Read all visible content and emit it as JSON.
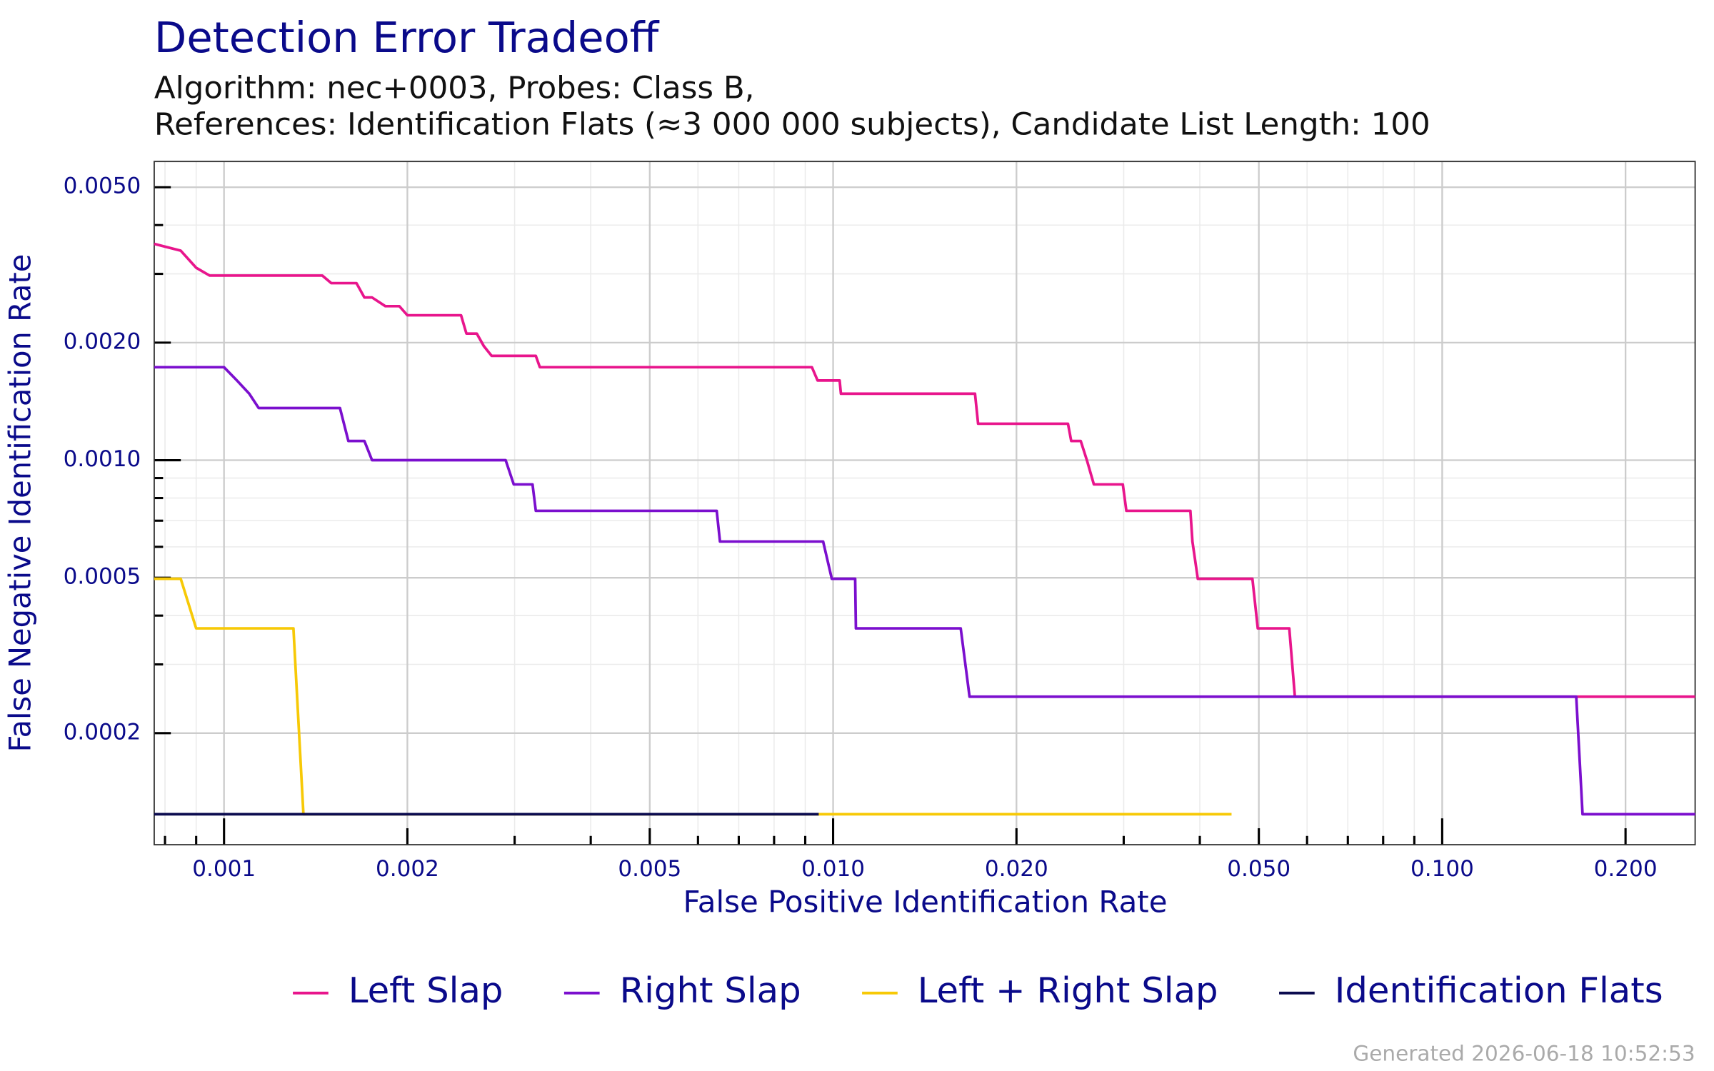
{
  "chart_data": {
    "type": "line",
    "title": "Detection Error Tradeoff",
    "subtitle": [
      "Algorithm: nec+0003, Probes: Class B,",
      "References: Identification Flats (≈3 000 000 subjects), Candidate List Length: 100"
    ],
    "x_label": "False Positive Identification Rate",
    "y_label": "False Negative Identification Rate",
    "xscale": "log",
    "yscale": "log",
    "grid": true,
    "legend": "bottom",
    "xlim": [
      0.000768,
      0.2602
    ],
    "ylim": [
      0.0001036,
      0.00582
    ],
    "xticks": [
      {
        "value": 0.001,
        "label": "0.001"
      },
      {
        "value": 0.002,
        "label": "0.002"
      },
      {
        "value": 0.005,
        "label": "0.005"
      },
      {
        "value": 0.01,
        "label": "0.010"
      },
      {
        "value": 0.02,
        "label": "0.020"
      },
      {
        "value": 0.05,
        "label": "0.050"
      },
      {
        "value": 0.1,
        "label": "0.100"
      },
      {
        "value": 0.2,
        "label": "0.200"
      }
    ],
    "yticks": [
      {
        "value": 0.0002,
        "label": "0.0002"
      },
      0.0005,
      {
        "value": 0.001,
        "label": "0.0010"
      },
      {
        "value": 0.002,
        "label": "0.0020"
      },
      {
        "value": 0.005,
        "label": "0.0050"
      }
    ],
    "x_minor_ticks": [
      0.0008,
      0.0009,
      0.003,
      0.004,
      0.006,
      0.007,
      0.008,
      0.009,
      0.03,
      0.04,
      0.06,
      0.07,
      0.08,
      0.09
    ],
    "y_minor_ticks": [
      0.0003,
      0.0004,
      0.0006,
      0.0007,
      0.0008,
      0.0009,
      0.003,
      0.004
    ],
    "series": [
      {
        "name": "Left Slap",
        "color": "#e8158c",
        "x": [
          0.000768,
          0.000849,
          0.0009,
          0.000947,
          0.00145,
          0.0015,
          0.00165,
          0.0017,
          0.00175,
          0.00184,
          0.00194,
          0.002,
          0.00245,
          0.0025,
          0.0026,
          0.00267,
          0.00275,
          0.00325,
          0.0033,
          0.00923,
          0.00943,
          0.01025,
          0.0103,
          0.0171,
          0.0173,
          0.0243,
          0.0246,
          0.0255,
          0.0261,
          0.0268,
          0.0299,
          0.0303,
          0.0386,
          0.0389,
          0.0397,
          0.0488,
          0.0498,
          0.0561,
          0.0573,
          0.2602
        ],
        "values": [
          0.00358,
          0.00344,
          0.00311,
          0.00297,
          0.00297,
          0.00284,
          0.00284,
          0.00261,
          0.00261,
          0.00248,
          0.00248,
          0.00235,
          0.00235,
          0.00211,
          0.00211,
          0.00196,
          0.00185,
          0.00185,
          0.00173,
          0.00173,
          0.0016,
          0.0016,
          0.00148,
          0.00148,
          0.00124,
          0.00124,
          0.00112,
          0.00112,
          0.001,
          0.000867,
          0.000867,
          0.000742,
          0.000742,
          0.000619,
          0.000497,
          0.000497,
          0.000371,
          0.000371,
          0.000248,
          0.000248
        ]
      },
      {
        "name": "Right Slap",
        "color": "#7b0fce",
        "x": [
          0.000768,
          0.001,
          0.00105,
          0.0011,
          0.00114,
          0.00155,
          0.0016,
          0.0017,
          0.00175,
          0.0029,
          0.00299,
          0.00321,
          0.00325,
          0.00644,
          0.00652,
          0.00963,
          0.00995,
          0.01087,
          0.0109,
          0.0162,
          0.01675,
          0.166,
          0.17,
          0.2602
        ],
        "values": [
          0.00173,
          0.00173,
          0.0016,
          0.00148,
          0.00136,
          0.00136,
          0.00112,
          0.00112,
          0.001,
          0.001,
          0.000867,
          0.000867,
          0.000742,
          0.000742,
          0.000619,
          0.000619,
          0.000497,
          0.000497,
          0.000371,
          0.000371,
          0.000248,
          0.000248,
          0.000124,
          0.000124
        ]
      },
      {
        "name": "Left + Right Slap",
        "color": "#f7c906",
        "x": [
          0.000768,
          0.000849,
          0.0009,
          0.0013,
          0.00135,
          0.0451
        ],
        "values": [
          0.000497,
          0.000497,
          0.000371,
          0.000371,
          0.000124,
          0.000124
        ]
      },
      {
        "name": "Identification Flats",
        "color": "#0b0b4f",
        "x": [
          0.000768,
          0.00947
        ],
        "values": [
          0.000124,
          0.000124
        ]
      }
    ]
  },
  "footer": "Generated 2026-06-18 10:52:53"
}
